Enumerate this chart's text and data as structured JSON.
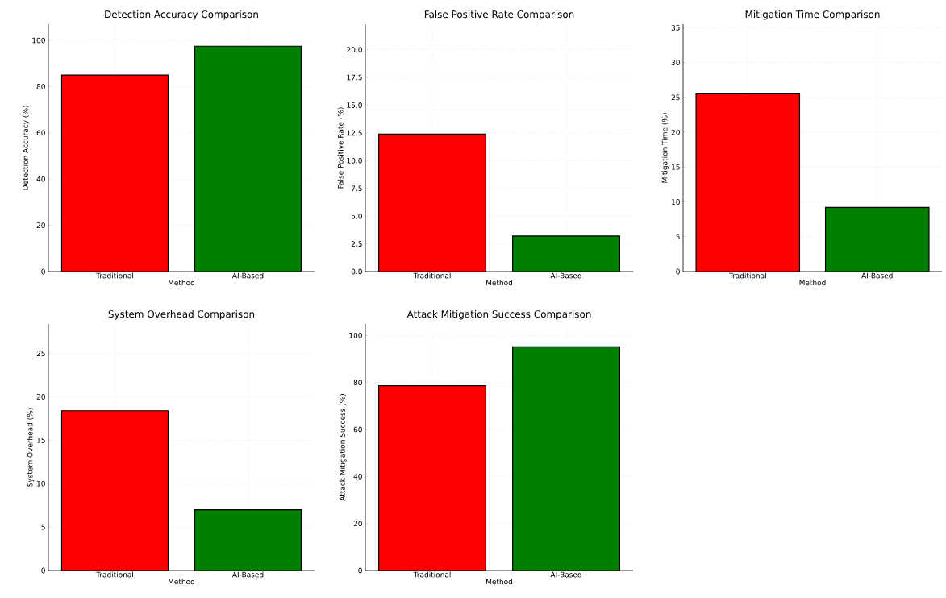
{
  "chart_data": [
    {
      "type": "bar",
      "title": "Detection Accuracy Comparison",
      "xlabel": "Method",
      "ylabel": "Detection Accuracy (%)",
      "categories": [
        "Traditional",
        "AI-Based"
      ],
      "values": [
        85,
        97.5
      ],
      "colors": [
        "#ff0000",
        "#008000"
      ],
      "ylim": [
        0,
        107
      ],
      "yticks": [
        0,
        20,
        40,
        60,
        80,
        100
      ],
      "grid": true
    },
    {
      "type": "bar",
      "title": "False Positive Rate Comparison",
      "xlabel": "Method",
      "ylabel": "False Positive Rate (%)",
      "categories": [
        "Traditional",
        "AI-Based"
      ],
      "values": [
        12.4,
        3.2
      ],
      "colors": [
        "#ff0000",
        "#008000"
      ],
      "ylim": [
        0,
        22.3
      ],
      "yticks": [
        {
          "value": 0,
          "label": "0.0"
        },
        2.5,
        {
          "value": 5,
          "label": "5.0"
        },
        7.5,
        {
          "value": 10,
          "label": "10.0"
        },
        12.5,
        {
          "value": 15,
          "label": "15.0"
        },
        17.5,
        {
          "value": 20,
          "label": "20.0"
        }
      ],
      "grid": true
    },
    {
      "type": "bar",
      "title": "Mitigation Time Comparison",
      "xlabel": "Method",
      "ylabel": "Mitigation Time (%)",
      "categories": [
        "Traditional",
        "AI-Based"
      ],
      "values": [
        25.5,
        9.2
      ],
      "colors": [
        "#ff0000",
        "#008000"
      ],
      "ylim": [
        0,
        35.5
      ],
      "yticks": [
        0,
        5,
        10,
        15,
        20,
        25,
        30,
        35
      ],
      "grid": true
    },
    {
      "type": "bar",
      "title": "System Overhead Comparison",
      "xlabel": "Method",
      "ylabel": "System Overhead (%)",
      "categories": [
        "Traditional",
        "AI-Based"
      ],
      "values": [
        18.4,
        7.0
      ],
      "colors": [
        "#ff0000",
        "#008000"
      ],
      "ylim": [
        0,
        28.4
      ],
      "yticks": [
        0,
        5,
        10,
        15,
        20,
        25
      ],
      "grid": true
    },
    {
      "type": "bar",
      "title": "Attack Mitigation Success Comparison",
      "xlabel": "Method",
      "ylabel": "Attack Mitigation Success (%)",
      "categories": [
        "Traditional",
        "AI-Based"
      ],
      "values": [
        78.6,
        95.2
      ],
      "colors": [
        "#ff0000",
        "#008000"
      ],
      "ylim": [
        0,
        104.9
      ],
      "yticks": [
        0,
        20,
        40,
        60,
        80,
        100
      ],
      "grid": true
    }
  ]
}
